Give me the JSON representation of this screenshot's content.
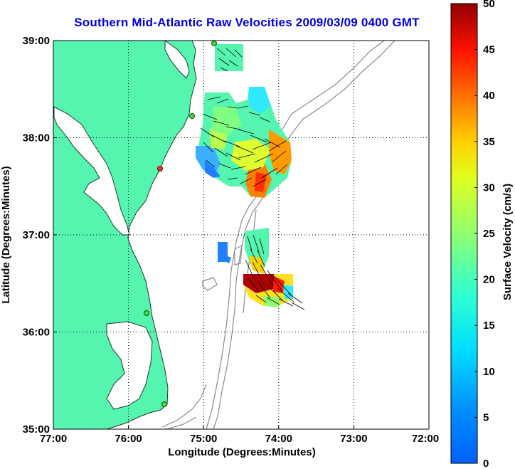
{
  "title": "Southern Mid-Atlantic Raw Velocities 2009/03/09 0400 GMT",
  "map": {
    "xlabel": "Longitude (Degrees:Minutes)",
    "ylabel": "Latitude (Degrees:Minutes)",
    "x_ticks": [
      "77:00",
      "76:00",
      "75:00",
      "74:00",
      "73:00",
      "72:00"
    ],
    "y_ticks": [
      "39:00",
      "38:00",
      "37:00",
      "36:00",
      "35:00"
    ],
    "land_color": "#55f5b0",
    "grid": "dotted"
  },
  "colorbar": {
    "label": "Surface Velocity (cm/s)",
    "ticks": [
      "50",
      "45",
      "40",
      "35",
      "30",
      "25",
      "20",
      "15",
      "10",
      "5",
      "0"
    ],
    "min": 0,
    "max": 50,
    "colormap": "jet"
  }
}
